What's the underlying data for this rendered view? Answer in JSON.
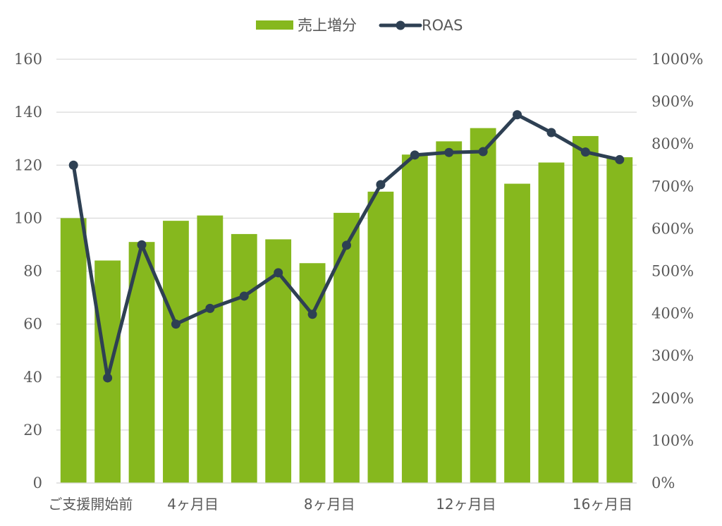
{
  "chart_data": {
    "type": "bar+line",
    "categories": [
      "ご支援開始前",
      "",
      "",
      "4ヶ月目",
      "",
      "",
      "",
      "8ヶ月目",
      "",
      "",
      "",
      "12ヶ月目",
      "",
      "",
      "",
      "16ヶ月目",
      ""
    ],
    "series": [
      {
        "name": "売上増分",
        "type": "bar",
        "axis": "left",
        "color": "#86b81e",
        "values": [
          100,
          84,
          91,
          99,
          101,
          94,
          92,
          83,
          102,
          110,
          124,
          129,
          134,
          113,
          121,
          131,
          123
        ]
      },
      {
        "name": "ROAS",
        "type": "line",
        "axis": "right",
        "color": "#2e4053",
        "values": [
          750,
          248,
          562,
          375,
          412,
          441,
          496,
          398,
          561,
          704,
          774,
          780,
          782,
          869,
          827,
          781,
          763
        ]
      }
    ],
    "left_axis": {
      "ylim": [
        0,
        160
      ],
      "ticks": [
        "0",
        "20",
        "40",
        "60",
        "80",
        "100",
        "120",
        "140",
        "160"
      ]
    },
    "right_axis": {
      "ylim": [
        0,
        1000
      ],
      "ticks": [
        "0%",
        "100%",
        "200%",
        "300%",
        "400%",
        "500%",
        "600%",
        "700%",
        "800%",
        "900%",
        "1000%"
      ]
    },
    "grid": true,
    "legend": "top-center"
  }
}
